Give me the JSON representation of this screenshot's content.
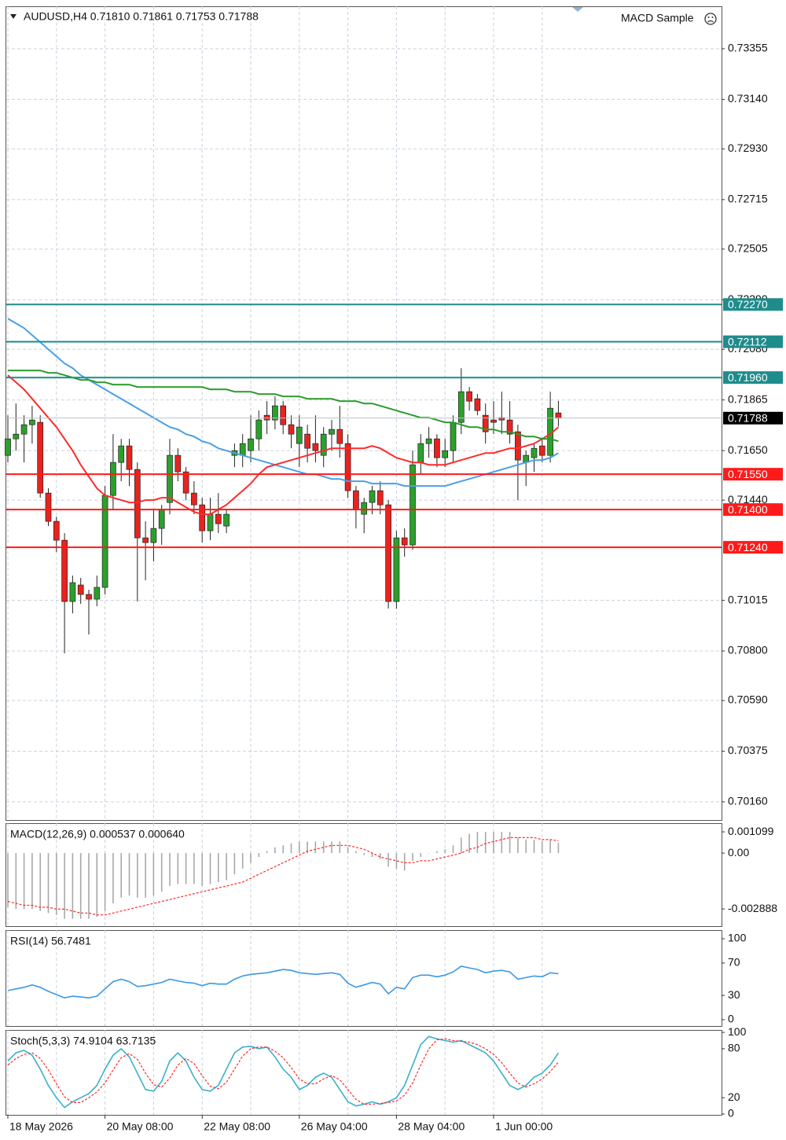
{
  "chart_data": [
    {
      "type": "candlestick",
      "title": "AUDUSD,H4 0.71810 0.71861 0.71753 0.71788",
      "expert": "MACD Sample",
      "categories": [
        "18 May 2026",
        null,
        null,
        null,
        null,
        null,
        null,
        null,
        null,
        null,
        null,
        null,
        "20 May 08:00",
        null,
        null,
        null,
        null,
        null,
        null,
        null,
        null,
        null,
        null,
        null,
        "22 May 08:00",
        null,
        null,
        null,
        null,
        null,
        null,
        null,
        null,
        null,
        null,
        null,
        "26 May 04:00",
        null,
        null,
        null,
        null,
        null,
        null,
        null,
        null,
        null,
        null,
        null,
        "28 May 04:00",
        null,
        null,
        null,
        null,
        null,
        null,
        null,
        null,
        null,
        null,
        null,
        "1 Jun 00:00",
        null,
        null,
        null,
        null,
        null,
        null,
        null,
        null
      ],
      "open": [
        0.7163,
        0.717,
        0.7172,
        0.7176,
        0.7177,
        0.7147,
        0.7135,
        0.7127,
        0.7101,
        0.7108,
        0.7104,
        0.7102,
        0.7107,
        0.7146,
        0.716,
        0.7167,
        0.7157,
        0.7128,
        0.7126,
        0.7132,
        0.7143,
        0.7163,
        0.7156,
        0.7147,
        0.7142,
        0.7131,
        0.7138,
        0.7133,
        0.7163,
        0.7163,
        0.7165,
        0.717,
        0.718,
        0.7178,
        0.7184,
        0.7176,
        0.7168,
        0.7172,
        0.7168,
        0.7163,
        0.7172,
        0.7174,
        0.7168,
        0.7148,
        0.7138,
        0.7143,
        0.7148,
        0.7142,
        0.7101,
        0.7128,
        0.7125,
        0.716,
        0.7168,
        0.717,
        0.7162,
        0.7165,
        0.7177,
        0.719,
        0.7187,
        0.718,
        0.7178,
        0.7179,
        0.7178,
        0.7173,
        0.716,
        0.7162,
        0.7167,
        0.7163,
        0.7181
      ],
      "high": [
        0.718,
        0.7185,
        0.718,
        0.7184,
        0.718,
        0.7149,
        0.7137,
        0.713,
        0.7112,
        0.7111,
        0.7106,
        0.7112,
        0.715,
        0.7172,
        0.717,
        0.717,
        0.716,
        0.7135,
        0.714,
        0.7142,
        0.717,
        0.7166,
        0.7158,
        0.7152,
        0.7145,
        0.7145,
        0.7147,
        0.714,
        0.7168,
        0.7172,
        0.718,
        0.7182,
        0.7186,
        0.7188,
        0.7186,
        0.718,
        0.718,
        0.7176,
        0.718,
        0.7175,
        0.7178,
        0.7184,
        0.7172,
        0.715,
        0.7145,
        0.715,
        0.7152,
        0.7144,
        0.7131,
        0.7132,
        0.7165,
        0.7172,
        0.7175,
        0.7172,
        0.717,
        0.718,
        0.72,
        0.7192,
        0.7189,
        0.7185,
        0.7186,
        0.719,
        0.7186,
        0.7176,
        0.7165,
        0.7168,
        0.717,
        0.719,
        0.71861
      ],
      "low": [
        0.716,
        0.7165,
        0.716,
        0.7168,
        0.7145,
        0.7133,
        0.7122,
        0.7079,
        0.7096,
        0.71,
        0.7087,
        0.7099,
        0.7104,
        0.714,
        0.7152,
        0.715,
        0.7101,
        0.711,
        0.7118,
        0.7125,
        0.7138,
        0.7152,
        0.7144,
        0.7138,
        0.7126,
        0.7127,
        0.713,
        0.713,
        0.7158,
        0.7158,
        0.716,
        0.7165,
        0.7172,
        0.7174,
        0.7172,
        0.7166,
        0.7158,
        0.716,
        0.716,
        0.7158,
        0.7165,
        0.7162,
        0.7145,
        0.7132,
        0.713,
        0.7138,
        0.7138,
        0.7098,
        0.7098,
        0.712,
        0.7123,
        0.7155,
        0.7162,
        0.7158,
        0.7158,
        0.716,
        0.7172,
        0.7182,
        0.718,
        0.7168,
        0.7172,
        0.7172,
        0.7168,
        0.7144,
        0.715,
        0.7156,
        0.716,
        0.716,
        0.71753
      ],
      "close": [
        0.717,
        0.7172,
        0.7176,
        0.7178,
        0.7147,
        0.7135,
        0.7127,
        0.7101,
        0.7109,
        0.7104,
        0.7102,
        0.7107,
        0.7146,
        0.716,
        0.7167,
        0.7157,
        0.7128,
        0.7126,
        0.7132,
        0.714,
        0.7163,
        0.7156,
        0.7147,
        0.7142,
        0.7131,
        0.7138,
        0.7134,
        0.7138,
        0.7165,
        0.7168,
        0.717,
        0.7178,
        0.7178,
        0.7184,
        0.7176,
        0.7172,
        0.7175,
        0.7166,
        0.7165,
        0.7172,
        0.7174,
        0.7168,
        0.7148,
        0.714,
        0.7143,
        0.7148,
        0.7142,
        0.7101,
        0.7128,
        0.7125,
        0.7159,
        0.7168,
        0.717,
        0.7162,
        0.7165,
        0.7177,
        0.719,
        0.7186,
        0.7182,
        0.7173,
        0.7177,
        0.7178,
        0.7172,
        0.7161,
        0.7163,
        0.7166,
        0.7163,
        0.7183,
        0.71788
      ],
      "up_color": "#2ca02c",
      "down_color": "#e8231f",
      "series": [
        {
          "color": "#4a9fe8",
          "values": [
            0.7221,
            0.7219,
            0.7217,
            0.7214,
            0.7211,
            0.7208,
            0.7205,
            0.7202,
            0.72,
            0.7197,
            0.7195,
            0.7193,
            0.7191,
            0.7189,
            0.7187,
            0.7185,
            0.7183,
            0.7181,
            0.7179,
            0.7177,
            0.7175,
            0.7174,
            0.7172,
            0.7171,
            0.7169,
            0.7168,
            0.7166,
            0.7165,
            0.7164,
            0.7163,
            0.7162,
            0.7161,
            0.716,
            0.7159,
            0.7158,
            0.7157,
            0.7156,
            0.7155,
            0.7155,
            0.7154,
            0.7153,
            0.7153,
            0.7152,
            0.7152,
            0.7152,
            0.7151,
            0.7151,
            0.7151,
            0.7151,
            0.715,
            0.715,
            0.715,
            0.715,
            0.715,
            0.715,
            0.7151,
            0.7152,
            0.7153,
            0.7154,
            0.7155,
            0.7156,
            0.7157,
            0.7158,
            0.7159,
            0.716,
            0.7161,
            0.7161,
            0.7162,
            0.7164
          ]
        },
        {
          "color": "#ff2a2a",
          "values": [
            0.7197,
            0.7194,
            0.7191,
            0.7187,
            0.7183,
            0.7179,
            0.7175,
            0.717,
            0.7165,
            0.7159,
            0.7154,
            0.7149,
            0.7146,
            0.7145,
            0.7144,
            0.7143,
            0.7143,
            0.7144,
            0.7144,
            0.7145,
            0.7145,
            0.7143,
            0.7141,
            0.7139,
            0.7138,
            0.7138,
            0.714,
            0.7142,
            0.7145,
            0.7148,
            0.7151,
            0.7155,
            0.7158,
            0.7159,
            0.716,
            0.7161,
            0.7162,
            0.7163,
            0.7164,
            0.7165,
            0.7166,
            0.7166,
            0.7166,
            0.7166,
            0.7166,
            0.7167,
            0.7166,
            0.7164,
            0.7162,
            0.7161,
            0.716,
            0.716,
            0.7159,
            0.7159,
            0.7159,
            0.716,
            0.7161,
            0.7162,
            0.7163,
            0.7164,
            0.7164,
            0.7165,
            0.7166,
            0.7166,
            0.7167,
            0.7168,
            0.717,
            0.7172,
            0.7175
          ]
        },
        {
          "color": "#2a9a2a",
          "values": [
            0.7199,
            0.7199,
            0.7199,
            0.7199,
            0.7199,
            0.7198,
            0.7198,
            0.7197,
            0.7196,
            0.7195,
            0.7195,
            0.7194,
            0.7194,
            0.7193,
            0.7193,
            0.7193,
            0.7192,
            0.7192,
            0.7192,
            0.7192,
            0.7192,
            0.7192,
            0.7192,
            0.7192,
            0.7192,
            0.7191,
            0.7191,
            0.7191,
            0.719,
            0.719,
            0.719,
            0.7189,
            0.7189,
            0.7189,
            0.7188,
            0.7188,
            0.7188,
            0.7187,
            0.7187,
            0.7187,
            0.7187,
            0.7186,
            0.7186,
            0.7186,
            0.7185,
            0.7185,
            0.7184,
            0.7183,
            0.7182,
            0.7181,
            0.718,
            0.7179,
            0.7179,
            0.7178,
            0.7177,
            0.7177,
            0.7176,
            0.7175,
            0.7175,
            0.7174,
            0.7174,
            0.7173,
            0.7173,
            0.7172,
            0.7171,
            0.7171,
            0.717,
            0.717,
            0.7169
          ]
        }
      ],
      "levels": [
        {
          "value": 0.7227,
          "label": "0.72270",
          "color": "#1f8c8c"
        },
        {
          "value": 0.72112,
          "label": "0.72112",
          "color": "#1f8c8c"
        },
        {
          "value": 0.7196,
          "label": "0.71960",
          "color": "#1f8c8c"
        },
        {
          "value": 0.7155,
          "label": "0.71550",
          "color": "#ff1a1a"
        },
        {
          "value": 0.714,
          "label": "0.71400",
          "color": "#ff1a1a"
        },
        {
          "value": 0.7124,
          "label": "0.71240",
          "color": "#ff1a1a"
        }
      ],
      "last_price": {
        "value": 0.71788,
        "label": "0.71788",
        "color": "#000000"
      },
      "ylim": [
        0.70083,
        0.73535
      ],
      "yticks": [
        0.73355,
        {
          "value": 0.7314,
          "label": "0.73140"
        },
        {
          "value": 0.7293,
          "label": "0.72930"
        },
        0.72715,
        0.72505,
        {
          "value": 0.7229,
          "label": "0.72290"
        },
        {
          "value": 0.7208,
          "label": "0.72080"
        },
        0.71865,
        {
          "value": 0.7165,
          "label": "0.71650"
        },
        {
          "value": 0.7144,
          "label": "0.71440"
        },
        0.71015,
        {
          "value": 0.708,
          "label": "0.70800"
        },
        {
          "value": 0.7059,
          "label": "0.70590"
        },
        0.70375,
        {
          "value": 0.7016,
          "label": "0.70160"
        }
      ],
      "grid": true
    },
    {
      "type": "macd",
      "title": "MACD(12,26,9) 0.000537 0.000640",
      "series": [
        {
          "color": "#a8a8a8",
          "style": "histogram",
          "values": [
            -0.0028,
            -0.0029,
            -0.0029,
            -0.0029,
            -0.003,
            -0.0031,
            -0.0032,
            -0.0034,
            -0.0034,
            -0.0034,
            -0.0034,
            -0.0033,
            -0.003,
            -0.0026,
            -0.0023,
            -0.0022,
            -0.0023,
            -0.0023,
            -0.0022,
            -0.002,
            -0.0017,
            -0.0016,
            -0.0016,
            -0.0016,
            -0.0017,
            -0.0016,
            -0.0015,
            -0.0014,
            -0.0011,
            -0.0008,
            -0.0005,
            -0.0002,
            0.0001,
            0.0003,
            0.0004,
            0.0005,
            0.0006,
            0.0006,
            0.0006,
            0.0006,
            0.0006,
            0.0006,
            0.0003,
            0.0001,
            -0.0001,
            -0.0002,
            -0.0003,
            -0.0007,
            -0.0008,
            -0.0009,
            -0.0004,
            -0.0002,
            0,
            0.0001,
            0.0002,
            0.0004,
            0.0008,
            0.001,
            0.0011,
            0.0011,
            0.0011,
            0.0011,
            0.0011,
            0.0008,
            0.0007,
            0.0007,
            0.0006,
            0.0007,
            0.000537
          ]
        },
        {
          "color": "#ff2a2a",
          "style": "dotted",
          "values": [
            -0.0025,
            -0.0026,
            -0.0027,
            -0.0027,
            -0.0028,
            -0.0028,
            -0.0029,
            -0.0029,
            -0.003,
            -0.0031,
            -0.0031,
            -0.0032,
            -0.0032,
            -0.0031,
            -0.003,
            -0.0029,
            -0.0028,
            -0.0027,
            -0.0026,
            -0.0025,
            -0.0024,
            -0.0023,
            -0.0022,
            -0.0021,
            -0.002,
            -0.0019,
            -0.0018,
            -0.0017,
            -0.0016,
            -0.0015,
            -0.0013,
            -0.0011,
            -0.0009,
            -0.0007,
            -0.0005,
            -0.0003,
            -0.0001,
            0.0001,
            0.0002,
            0.0003,
            0.0004,
            0.0004,
            0.0004,
            0.0003,
            0.0002,
            0,
            -0.0002,
            -0.0003,
            -0.0004,
            -0.0005,
            -0.0005,
            -0.0004,
            -0.0004,
            -0.0003,
            -0.0002,
            -0.0001,
            0,
            0.0002,
            0.0003,
            0.0005,
            0.0006,
            0.0007,
            0.0008,
            0.0008,
            0.0008,
            0.0008,
            0.0007,
            0.0007,
            0.00064
          ]
        }
      ],
      "ylim": [
        -0.00378,
        0.00155
      ],
      "yticks": [
        0.001099,
        {
          "value": 0,
          "label": "0.00"
        },
        -0.002888
      ],
      "grid": false
    },
    {
      "type": "line",
      "title": "RSI(14) 56.7481",
      "series": [
        {
          "color": "#3a98e6",
          "style": "solid",
          "values": [
            36,
            38,
            40,
            43,
            40,
            35,
            31,
            27,
            29,
            28,
            27,
            29,
            38,
            47,
            50,
            47,
            41,
            42,
            44,
            46,
            50,
            48,
            46,
            45,
            42,
            45,
            44,
            44,
            50,
            54,
            56,
            57,
            58,
            60,
            62,
            61,
            58,
            57,
            56,
            57,
            58,
            56,
            45,
            40,
            43,
            46,
            44,
            32,
            40,
            38,
            52,
            55,
            55,
            53,
            55,
            59,
            66,
            64,
            62,
            58,
            60,
            61,
            59,
            50,
            52,
            54,
            53,
            58,
            56.7481
          ]
        }
      ],
      "ylim": [
        -7.8,
        110.7
      ],
      "yticks": [
        0,
        30,
        70,
        100
      ],
      "grid": false
    },
    {
      "type": "line",
      "title": "Stoch(5,3,3) 74.9104 63.7135",
      "series": [
        {
          "color": "#3ab0c8",
          "style": "solid",
          "values": [
            65,
            75,
            78,
            72,
            55,
            35,
            20,
            8,
            15,
            20,
            25,
            35,
            55,
            72,
            80,
            70,
            50,
            30,
            28,
            40,
            65,
            75,
            65,
            45,
            30,
            28,
            35,
            55,
            75,
            82,
            83,
            80,
            82,
            70,
            55,
            45,
            30,
            35,
            45,
            50,
            45,
            30,
            15,
            10,
            12,
            15,
            12,
            15,
            20,
            35,
            60,
            85,
            95,
            92,
            90,
            88,
            90,
            85,
            80,
            75,
            65,
            50,
            35,
            30,
            35,
            45,
            50,
            60,
            74.9104
          ]
        },
        {
          "color": "#ff2a2a",
          "style": "dotted",
          "values": [
            60,
            68,
            73,
            75,
            68,
            54,
            37,
            21,
            14,
            14,
            20,
            27,
            38,
            54,
            69,
            74,
            67,
            50,
            36,
            33,
            44,
            60,
            68,
            62,
            47,
            34,
            31,
            39,
            55,
            71,
            80,
            82,
            82,
            77,
            69,
            57,
            43,
            37,
            37,
            43,
            47,
            42,
            30,
            18,
            12,
            12,
            13,
            14,
            16,
            23,
            38,
            60,
            80,
            91,
            92,
            90,
            89,
            88,
            85,
            80,
            73,
            63,
            50,
            38,
            33,
            37,
            43,
            52,
            63.7135
          ]
        }
      ],
      "ylim": [
        -1,
        103
      ],
      "yticks": [
        0,
        20,
        80,
        100
      ],
      "grid": false
    }
  ]
}
